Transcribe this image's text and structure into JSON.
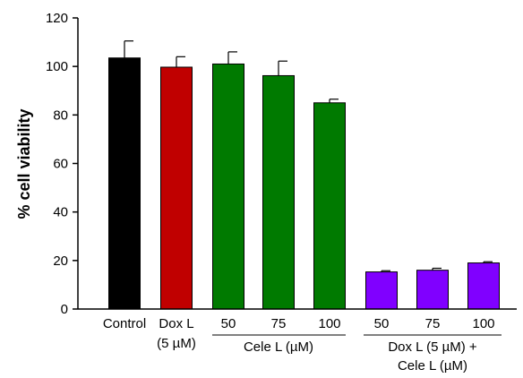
{
  "chart_data": {
    "type": "bar",
    "ylabel": "% cell viability",
    "ylim": [
      0,
      120
    ],
    "yticks": [
      0,
      20,
      40,
      60,
      80,
      100,
      120
    ],
    "grid": false,
    "bars": [
      {
        "category": "Control",
        "value": 103.5,
        "error": 7.0,
        "color": "#000000"
      },
      {
        "category": "Dox L (5 µM)",
        "value": 99.7,
        "error": 4.3,
        "color": "#c00000"
      },
      {
        "category": "50",
        "value": 101.0,
        "error": 5.0,
        "color": "#007a00"
      },
      {
        "category": "75",
        "value": 96.2,
        "error": 6.0,
        "color": "#007a00"
      },
      {
        "category": "100",
        "value": 85.0,
        "error": 1.5,
        "color": "#007a00"
      },
      {
        "category": "50",
        "value": 15.3,
        "error": 0.5,
        "color": "#8000ff"
      },
      {
        "category": "75",
        "value": 16.0,
        "error": 0.8,
        "color": "#8000ff"
      },
      {
        "category": "100",
        "value": 19.0,
        "error": 0.5,
        "color": "#8000ff"
      }
    ],
    "labels": {
      "control": "Control",
      "dox_l": "Dox L",
      "dox_l_conc": "(5 µM)",
      "cele_50": "50",
      "cele_75": "75",
      "cele_100": "100",
      "cele_group": "Cele L (µM)",
      "combo_50": "50",
      "combo_75": "75",
      "combo_100": "100",
      "combo_group_line1": "Dox L (5 µM) +",
      "combo_group_line2": "Cele L (µM)"
    }
  }
}
